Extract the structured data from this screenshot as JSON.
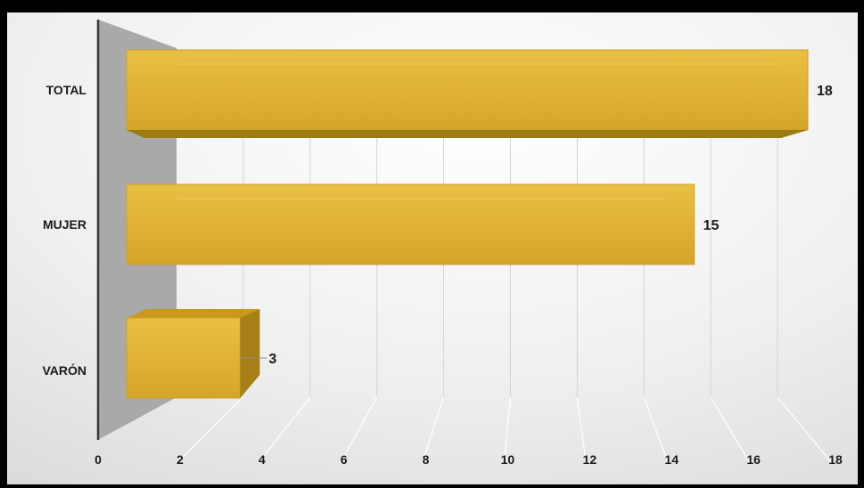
{
  "chart_data": {
    "type": "bar",
    "orientation": "horizontal",
    "three_d": true,
    "categories": [
      "TOTAL",
      "MUJER",
      "VARÓN"
    ],
    "values": [
      18,
      15,
      3
    ],
    "value_labels": [
      "18",
      "15",
      "3"
    ],
    "title": "",
    "xlabel": "",
    "ylabel": "",
    "xlim": [
      0,
      18
    ],
    "x_ticks": [
      "0",
      "2",
      "4",
      "6",
      "8",
      "10",
      "12",
      "14",
      "16",
      "18"
    ],
    "grid": true,
    "legend": "none",
    "colors": {
      "bar": "#E2B537",
      "bar_dark": "#9E7A12",
      "wall": "#A9A9A9",
      "background": "#EEEEEE"
    }
  }
}
